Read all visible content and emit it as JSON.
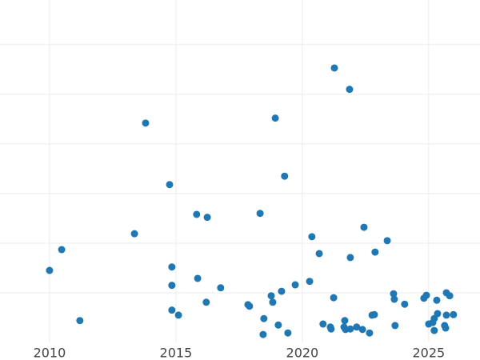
{
  "chart_data": {
    "type": "scatter",
    "color": "#1f77b4",
    "xlim": [
      2008.04,
      2027.03
    ],
    "ylim": [
      0,
      6.9
    ],
    "xticks": [
      2010,
      2015,
      2020,
      2025
    ],
    "ygrid": [
      1,
      2,
      3,
      4,
      5,
      6
    ],
    "grid": true,
    "x": [
      2010.0,
      2010.48,
      2011.2,
      2013.36,
      2013.8,
      2014.75,
      2014.84,
      2014.84,
      2014.84,
      2015.1,
      2015.82,
      2015.86,
      2016.2,
      2016.24,
      2016.77,
      2017.85,
      2017.91,
      2018.33,
      2018.45,
      2018.48,
      2018.77,
      2018.83,
      2018.93,
      2019.05,
      2019.18,
      2019.3,
      2019.43,
      2019.72,
      2020.29,
      2020.38,
      2020.67,
      2020.82,
      2021.11,
      2021.14,
      2021.24,
      2021.27,
      2021.65,
      2021.68,
      2021.71,
      2021.87,
      2021.9,
      2021.9,
      2022.15,
      2022.38,
      2022.44,
      2022.66,
      2022.76,
      2022.85,
      2022.88,
      2023.36,
      2023.61,
      2023.64,
      2023.67,
      2024.05,
      2024.81,
      2024.91,
      2025.0,
      2025.16,
      2025.22,
      2025.22,
      2025.32,
      2025.35,
      2025.63,
      2025.67,
      2025.7,
      2025.7,
      2025.83,
      2025.98
    ],
    "values": [
      1.45,
      1.87,
      0.44,
      2.19,
      4.42,
      3.18,
      1.52,
      1.15,
      0.65,
      0.55,
      2.58,
      1.29,
      0.81,
      2.52,
      1.1,
      0.76,
      0.73,
      2.6,
      0.16,
      0.48,
      0.94,
      0.81,
      4.52,
      0.35,
      1.03,
      3.35,
      0.19,
      1.16,
      1.23,
      2.13,
      1.79,
      0.37,
      0.31,
      0.27,
      0.9,
      5.53,
      0.31,
      0.44,
      0.26,
      5.1,
      0.27,
      1.71,
      0.31,
      0.26,
      2.32,
      0.19,
      0.55,
      0.56,
      1.82,
      2.05,
      0.98,
      0.87,
      0.34,
      0.77,
      0.89,
      0.95,
      0.37,
      0.4,
      0.48,
      0.24,
      0.85,
      0.58,
      0.34,
      0.29,
      0.55,
      1.0,
      0.94,
      0.56
    ]
  }
}
